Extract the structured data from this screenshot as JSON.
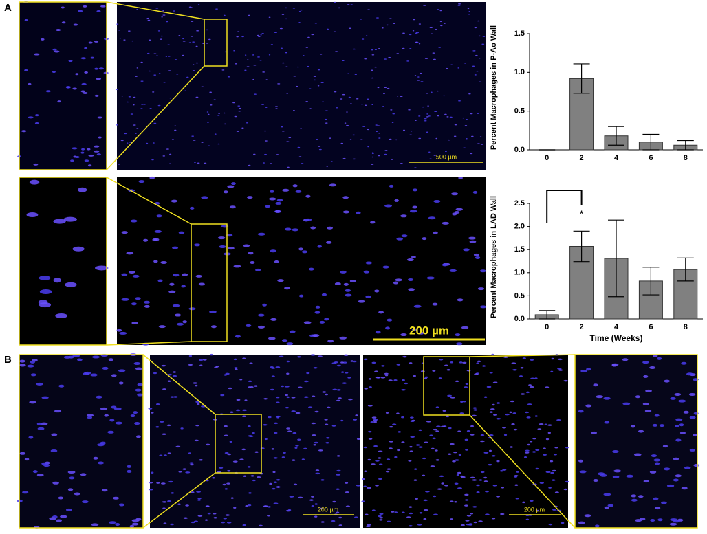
{
  "panel_labels": [
    "A",
    "B"
  ],
  "scale_bars": [
    "500 µm",
    "200 µm",
    "200 µm",
    "200 µm"
  ],
  "chart_data": [
    {
      "type": "bar",
      "ylabel": "Percent Macrophages in P-Ao Wall",
      "categories": [
        "0",
        "2",
        "4",
        "6",
        "8"
      ],
      "values": [
        0,
        0.92,
        0.18,
        0.1,
        0.06
      ],
      "errors": [
        0,
        0.19,
        0.12,
        0.1,
        0.06
      ],
      "color": "#808080",
      "ylim": [
        0,
        1.5
      ],
      "yticks": [
        {
          "value": 0,
          "label": "0.0"
        },
        0.5,
        {
          "value": 1,
          "label": "1.0"
        },
        1.5
      ]
    },
    {
      "type": "bar",
      "ylabel": "Percent Macrophages in LAD Wall",
      "xlabel": "Time (Weeks)",
      "annotation": "*",
      "categories": [
        "0",
        "2",
        "4",
        "6",
        "8"
      ],
      "values": [
        0.09,
        1.57,
        1.31,
        0.82,
        1.07
      ],
      "errors": [
        0.09,
        0.33,
        0.83,
        0.3,
        0.25
      ],
      "color": "#808080",
      "ylim": [
        0,
        2.5
      ],
      "yticks": [
        {
          "value": 0,
          "label": "0.0"
        },
        0.5,
        {
          "value": 1,
          "label": "1.0"
        },
        1.5,
        {
          "value": 2,
          "label": "2.0"
        },
        2.5
      ]
    }
  ]
}
